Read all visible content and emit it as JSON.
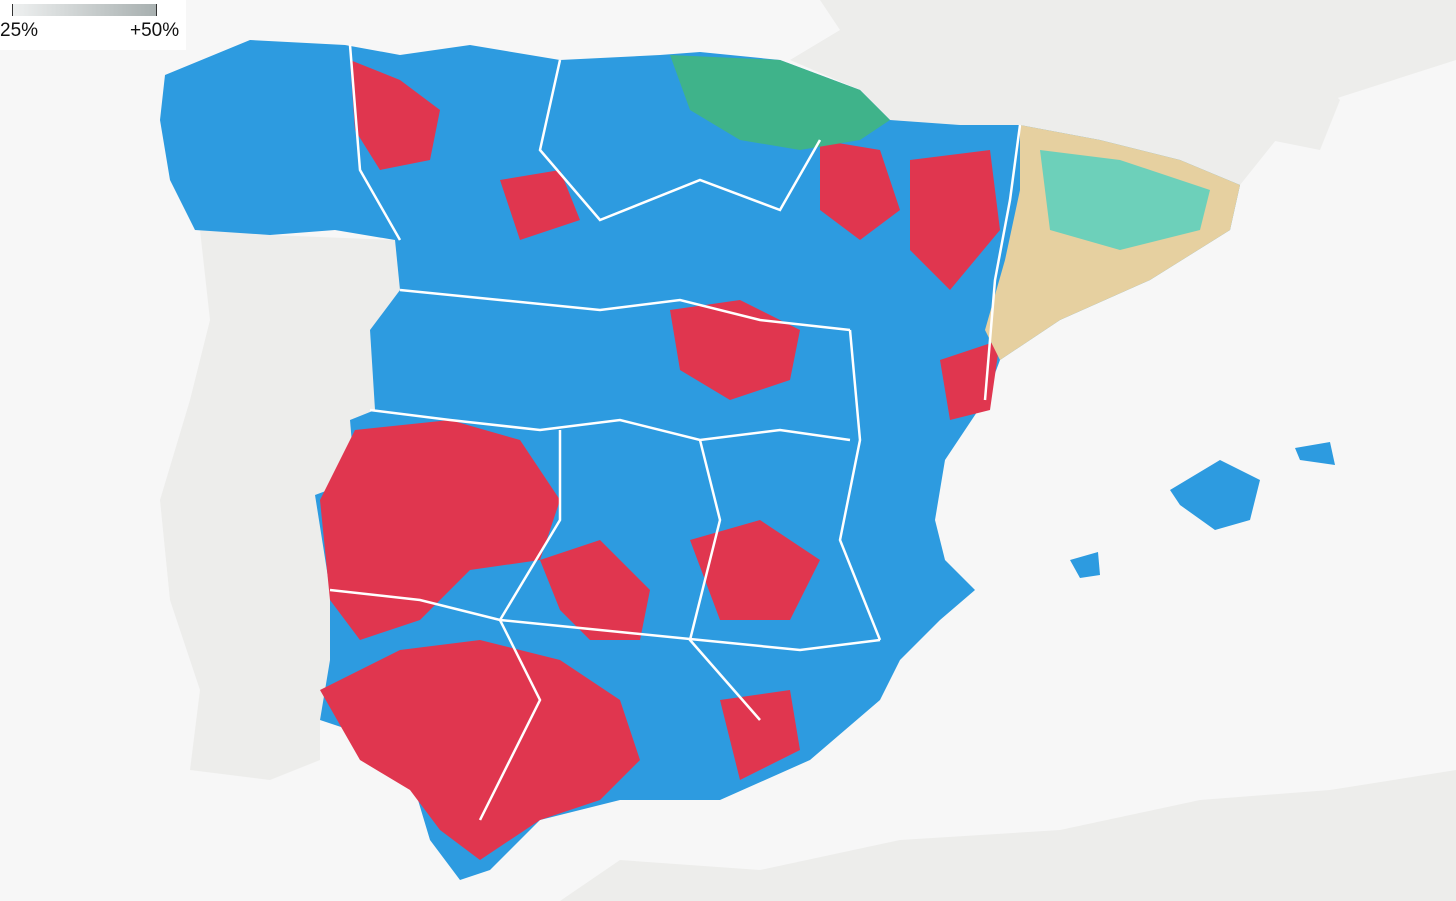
{
  "legend": {
    "labels": [
      "25%",
      "+50%"
    ]
  }
}
